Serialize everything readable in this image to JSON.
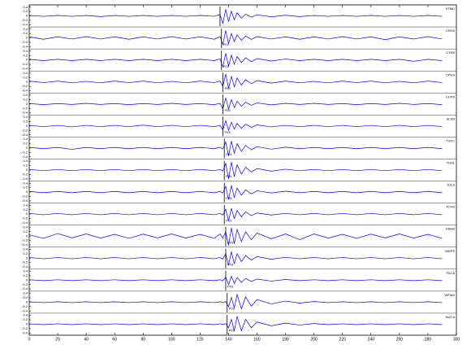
{
  "chart_data": {
    "type": "seismogram",
    "x": [
      0,
      10,
      20,
      30,
      40,
      50,
      60,
      70,
      80,
      90,
      100,
      110,
      120,
      130,
      134,
      136,
      138,
      140,
      142,
      144,
      146,
      149,
      152,
      156,
      160,
      170,
      180,
      190,
      200,
      210,
      220,
      230,
      240,
      250,
      260,
      270,
      280,
      290
    ],
    "xlim": [
      0,
      300
    ],
    "xticks": [
      0,
      20,
      40,
      60,
      80,
      100,
      120,
      140,
      160,
      180,
      200,
      220,
      240,
      260,
      280,
      300
    ],
    "ylim": [
      -0.5,
      0.5
    ],
    "yticks": [
      0.4,
      0.2,
      0,
      -0.2,
      -0.4
    ],
    "color": "#0000ff",
    "series": [
      {
        "name": "STMD",
        "pick_time": 134,
        "values": [
          0.02,
          -0.02,
          0.02,
          -0.02,
          0.02,
          -0.03,
          0.02,
          -0.02,
          0.02,
          -0.02,
          0.02,
          -0.02,
          0.02,
          -0.02,
          0.06,
          -0.35,
          0.3,
          -0.26,
          0.22,
          -0.18,
          0.14,
          -0.1,
          0.08,
          -0.06,
          0.05,
          -0.04,
          0.03,
          -0.03,
          0.02,
          -0.02,
          0.02,
          -0.02,
          0.02,
          -0.02,
          0.02,
          -0.02,
          0.02,
          -0.02
        ]
      },
      {
        "name": "CSHA",
        "pick_time": 135,
        "pick_label": "P03",
        "values": [
          0.05,
          -0.06,
          0.05,
          -0.05,
          0.06,
          -0.05,
          0.05,
          -0.06,
          0.05,
          -0.05,
          0.06,
          -0.05,
          0.05,
          -0.06,
          0.06,
          -0.3,
          0.34,
          -0.26,
          0.2,
          -0.17,
          0.14,
          -0.11,
          0.09,
          -0.07,
          0.06,
          -0.05,
          0.05,
          -0.06,
          0.05,
          -0.05,
          0.06,
          -0.05,
          0.05,
          -0.08,
          0.05,
          -0.05,
          0.06,
          -0.05
        ]
      },
      {
        "name": "CTKB",
        "pick_time": 135,
        "pick_label": "P03",
        "values": [
          0.03,
          -0.03,
          0.03,
          -0.03,
          0.03,
          -0.03,
          0.03,
          -0.03,
          0.03,
          -0.03,
          0.03,
          -0.03,
          0.03,
          -0.03,
          0.05,
          -0.32,
          0.3,
          -0.28,
          0.22,
          -0.2,
          0.15,
          -0.12,
          0.1,
          -0.08,
          0.06,
          -0.05,
          0.04,
          -0.03,
          0.03,
          -0.03,
          0.03,
          -0.03,
          0.03,
          -0.03,
          0.03,
          -0.06,
          0.03,
          -0.03
        ]
      },
      {
        "name": "CPHA",
        "pick_time": 136,
        "pick_label": "P03",
        "values": [
          0.04,
          -0.03,
          0.04,
          -0.04,
          0.03,
          -0.04,
          0.04,
          -0.03,
          0.04,
          -0.04,
          0.03,
          -0.04,
          0.04,
          -0.03,
          0.04,
          -0.2,
          0.36,
          -0.3,
          0.26,
          -0.22,
          0.18,
          -0.14,
          0.1,
          -0.08,
          0.06,
          -0.05,
          0.04,
          -0.04,
          0.03,
          -0.04,
          0.04,
          -0.03,
          0.04,
          -0.04,
          0.03,
          -0.04,
          0.04,
          -0.03
        ]
      },
      {
        "name": "CCPS",
        "pick_time": 136,
        "pick_label": "P03",
        "values": [
          0.02,
          -0.03,
          0.02,
          -0.02,
          0.03,
          -0.02,
          0.02,
          -0.03,
          0.02,
          -0.02,
          0.03,
          -0.02,
          0.02,
          -0.03,
          0.03,
          -0.22,
          0.28,
          -0.24,
          0.2,
          -0.16,
          0.12,
          -0.1,
          0.08,
          -0.06,
          0.05,
          -0.04,
          0.03,
          -0.02,
          0.03,
          -0.02,
          0.02,
          -0.03,
          0.02,
          -0.02,
          0.03,
          -0.02,
          0.02,
          -0.03
        ]
      },
      {
        "name": "SLKB",
        "pick_time": 136,
        "pick_label": "P03",
        "values": [
          0.03,
          -0.03,
          0.03,
          -0.04,
          0.03,
          -0.03,
          0.03,
          -0.03,
          0.04,
          -0.03,
          0.03,
          -0.03,
          0.03,
          -0.03,
          0.03,
          -0.18,
          0.24,
          -0.2,
          0.17,
          -0.14,
          0.12,
          -0.1,
          0.08,
          -0.06,
          0.05,
          -0.04,
          0.03,
          -0.03,
          0.03,
          -0.03,
          0.03,
          -0.03,
          0.03,
          -0.03,
          0.03,
          -0.03,
          0.03,
          -0.03
        ]
      },
      {
        "name": "TSTC",
        "pick_time": 137,
        "pick_label": "P03",
        "values": [
          0.03,
          -0.03,
          0.03,
          -0.06,
          0.03,
          -0.03,
          0.03,
          -0.03,
          0.03,
          -0.03,
          0.03,
          -0.03,
          0.03,
          -0.03,
          0.03,
          -0.04,
          0.28,
          -0.36,
          0.32,
          -0.25,
          0.2,
          -0.15,
          0.12,
          -0.08,
          0.06,
          -0.05,
          0.04,
          -0.03,
          0.03,
          -0.03,
          0.03,
          -0.03,
          0.03,
          -0.03,
          0.03,
          -0.03,
          0.03,
          -0.03
        ]
      },
      {
        "name": "TSHL",
        "pick_time": 137,
        "pick_label": "P03",
        "values": [
          0.03,
          -0.03,
          0.03,
          -0.03,
          0.03,
          -0.03,
          0.03,
          -0.03,
          0.03,
          -0.03,
          0.03,
          -0.03,
          0.03,
          -0.03,
          0.03,
          -0.04,
          0.3,
          -0.4,
          0.36,
          -0.3,
          0.24,
          -0.18,
          0.13,
          -0.09,
          0.07,
          -0.05,
          0.04,
          -0.03,
          0.03,
          -0.03,
          0.03,
          -0.03,
          0.03,
          -0.03,
          0.03,
          -0.03,
          0.03,
          -0.03
        ]
      },
      {
        "name": "SJLS",
        "pick_time": 137,
        "pick_label": "P03",
        "values": [
          0.03,
          -0.03,
          0.03,
          -0.03,
          0.03,
          -0.03,
          0.03,
          -0.03,
          0.03,
          -0.03,
          0.03,
          -0.03,
          0.03,
          -0.03,
          0.03,
          -0.04,
          0.26,
          -0.34,
          0.3,
          -0.24,
          0.18,
          -0.14,
          0.1,
          -0.08,
          0.06,
          -0.04,
          0.04,
          -0.03,
          0.03,
          -0.03,
          0.03,
          -0.03,
          0.03,
          -0.03,
          0.03,
          -0.03,
          0.03,
          -0.03
        ]
      },
      {
        "name": "TCHS",
        "pick_time": 137,
        "pick_label": "P03",
        "values": [
          0.03,
          -0.03,
          0.03,
          -0.03,
          0.03,
          -0.03,
          0.03,
          -0.03,
          0.03,
          -0.03,
          0.03,
          -0.03,
          0.03,
          -0.03,
          0.03,
          -0.04,
          0.22,
          -0.3,
          0.26,
          -0.2,
          0.16,
          -0.12,
          0.1,
          -0.07,
          0.05,
          -0.04,
          0.03,
          -0.03,
          0.03,
          -0.03,
          0.03,
          -0.03,
          0.03,
          -0.03,
          0.03,
          -0.03,
          0.03,
          -0.03
        ]
      },
      {
        "name": "HSHB",
        "pick_time": 138,
        "pick_label": "P03",
        "values": [
          0.06,
          -0.1,
          0.12,
          -0.08,
          0.1,
          -0.09,
          0.08,
          -0.1,
          0.09,
          -0.08,
          0.1,
          -0.09,
          0.08,
          -0.1,
          0.1,
          -0.09,
          0.2,
          -0.42,
          0.38,
          -0.35,
          0.3,
          -0.25,
          0.2,
          -0.16,
          0.14,
          -0.12,
          0.1,
          -0.16,
          0.1,
          -0.09,
          0.08,
          -0.1,
          0.09,
          -0.08,
          0.1,
          -0.09,
          0.08,
          -0.1
        ]
      },
      {
        "name": "WKPS",
        "pick_time": 138,
        "pick_label": "P03",
        "values": [
          0.03,
          -0.03,
          0.03,
          -0.03,
          0.03,
          -0.03,
          0.03,
          -0.03,
          0.03,
          -0.03,
          0.03,
          -0.03,
          0.03,
          -0.03,
          0.03,
          -0.04,
          0.2,
          -0.32,
          0.3,
          -0.26,
          0.2,
          -0.16,
          0.12,
          -0.09,
          0.07,
          -0.05,
          0.04,
          -0.03,
          0.03,
          -0.03,
          0.03,
          -0.03,
          0.03,
          -0.03,
          0.03,
          -0.03,
          0.03,
          -0.03
        ]
      },
      {
        "name": "TDCA",
        "pick_time": 138,
        "pick_label": "P03",
        "values": [
          0.02,
          -0.02,
          0.02,
          -0.02,
          0.02,
          -0.02,
          0.02,
          -0.02,
          0.02,
          -0.02,
          0.02,
          -0.02,
          0.02,
          -0.02,
          0.02,
          -0.03,
          0.14,
          -0.2,
          0.18,
          -0.15,
          0.12,
          -0.1,
          0.08,
          -0.06,
          0.05,
          -0.04,
          0.03,
          -0.02,
          0.02,
          -0.02,
          0.02,
          -0.02,
          0.02,
          -0.02,
          0.02,
          -0.02,
          0.02,
          -0.02
        ]
      },
      {
        "name": "WFMA",
        "pick_time": 139,
        "pick_label": "P03",
        "values": [
          0.02,
          -0.02,
          0.02,
          -0.02,
          0.02,
          -0.02,
          0.02,
          -0.02,
          0.02,
          -0.02,
          0.02,
          -0.02,
          0.02,
          -0.02,
          0.02,
          -0.02,
          0.03,
          -0.2,
          0.22,
          -0.26,
          0.34,
          -0.3,
          0.24,
          -0.18,
          0.12,
          -0.08,
          0.05,
          -0.04,
          0.03,
          -0.02,
          0.02,
          -0.02,
          0.02,
          -0.02,
          0.02,
          -0.02,
          0.02,
          -0.02
        ]
      },
      {
        "name": "NUCA",
        "pick_time": 139,
        "pick_label": "P03",
        "values": [
          0.02,
          -0.02,
          0.02,
          -0.02,
          0.02,
          -0.02,
          0.02,
          -0.02,
          0.02,
          -0.02,
          0.02,
          -0.02,
          0.02,
          -0.02,
          0.02,
          -0.02,
          0.03,
          -0.16,
          0.22,
          -0.3,
          0.36,
          -0.3,
          0.22,
          -0.16,
          0.1,
          -0.07,
          0.05,
          -0.04,
          0.03,
          -0.02,
          0.02,
          -0.02,
          0.02,
          -0.02,
          0.02,
          -0.02,
          0.02,
          -0.02
        ]
      }
    ]
  }
}
